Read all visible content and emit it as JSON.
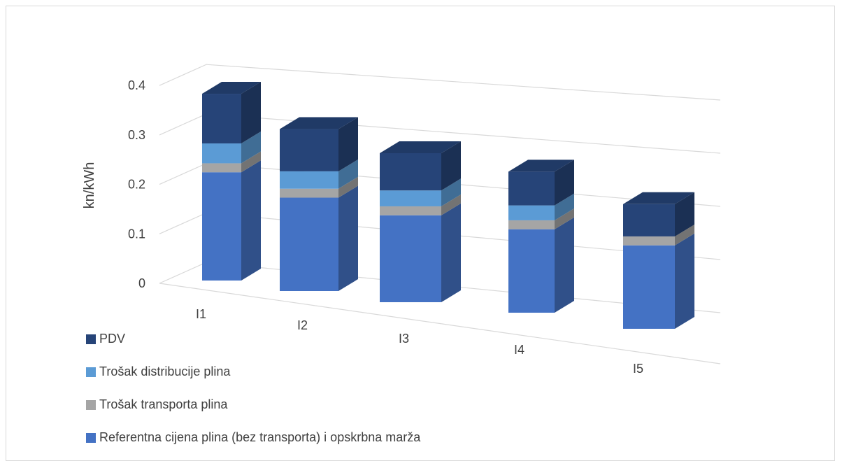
{
  "chart_data": {
    "type": "bar",
    "stacked": true,
    "three_d": true,
    "categories": [
      "I1",
      "I2",
      "I3",
      "I4",
      "I5"
    ],
    "ylabel": "kn/kWh",
    "ylim": [
      0,
      0.4
    ],
    "yticks": [
      "0",
      "0.1",
      "0.2",
      "0.3",
      "0.4"
    ],
    "grid": true,
    "legend_position": "bottom-left",
    "series": [
      {
        "name": "Referentna cijena plina (bez transporta) i opskrbna marža",
        "color": "#4472c4",
        "values": [
          0.218,
          0.188,
          0.175,
          0.168,
          0.168
        ]
      },
      {
        "name": "Trošak transporta plina",
        "color": "#a5a5a5",
        "values": [
          0.018,
          0.018,
          0.018,
          0.018,
          0.018
        ]
      },
      {
        "name": "Trošak distribucije plina",
        "color": "#5b9bd5",
        "values": [
          0.04,
          0.035,
          0.032,
          0.03,
          0.0
        ]
      },
      {
        "name": "PDV",
        "color": "#264478",
        "values": [
          0.1,
          0.085,
          0.075,
          0.068,
          0.065
        ]
      }
    ]
  }
}
